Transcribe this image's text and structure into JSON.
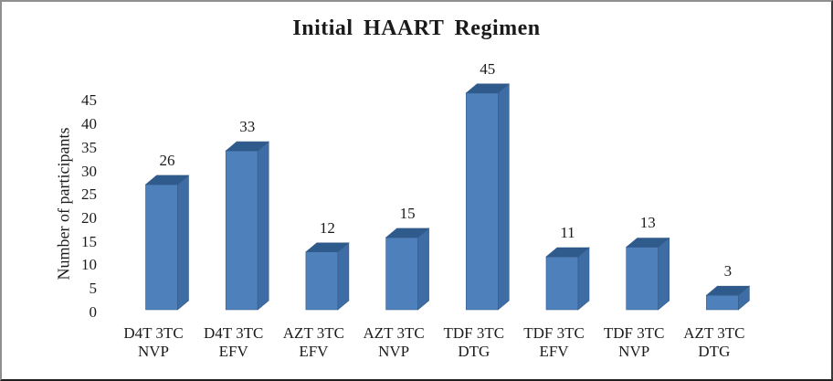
{
  "chart_data": {
    "type": "bar",
    "style": "3d",
    "title": "Initial HAART Regimen",
    "xlabel": "",
    "ylabel": "Number of participants",
    "categories": [
      {
        "line1": "D4T 3TC",
        "line2": "NVP"
      },
      {
        "line1": "D4T 3TC",
        "line2": "EFV"
      },
      {
        "line1": "AZT 3TC",
        "line2": "EFV"
      },
      {
        "line1": "AZT 3TC",
        "line2": "NVP"
      },
      {
        "line1": "TDF 3TC",
        "line2": "DTG"
      },
      {
        "line1": "TDF 3TC",
        "line2": "EFV"
      },
      {
        "line1": "TDF 3TC",
        "line2": "NVP"
      },
      {
        "line1": "AZT 3TC",
        "line2": "DTG"
      }
    ],
    "values": [
      26,
      33,
      12,
      15,
      45,
      11,
      13,
      3
    ],
    "data_labels_shown": true,
    "ylim": [
      0,
      45
    ],
    "yticks": [
      0,
      5,
      10,
      15,
      20,
      25,
      30,
      35,
      40,
      45
    ],
    "grid": false,
    "legend": "none",
    "colors": {
      "bar_front": "#4e80bc",
      "bar_top": "#2f5b8c",
      "bar_side": "#3e6da6",
      "bar_outline": "#355b88",
      "text": "#1a1a1a",
      "background": "#ffffff"
    }
  }
}
